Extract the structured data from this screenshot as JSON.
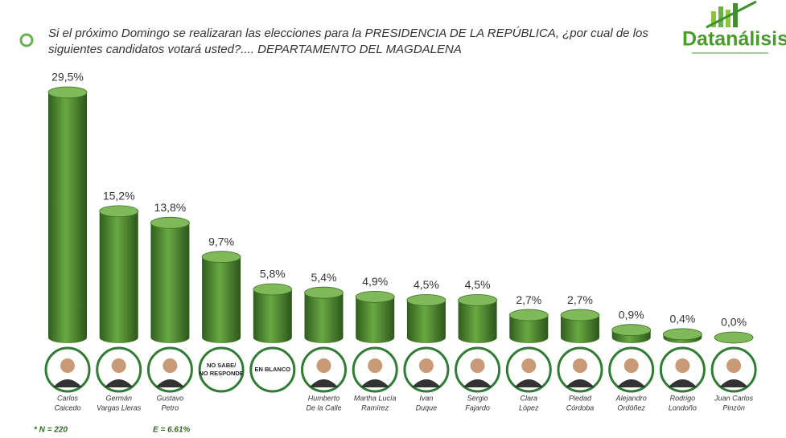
{
  "title": [
    "Si el próximo Domingo se realizaran las elecciones para la PRESIDENCIA DE LA REPÚBLICA, ¿por cual de los",
    "siguientes candidatos votará usted?.... DEPARTAMENTO DEL MAGDALENA"
  ],
  "logo": "Datanálisis",
  "footnotes": [
    "*   N = 220",
    "E = 6.61%"
  ],
  "chart_data": {
    "type": "bar",
    "categories": [
      [
        "Carlos",
        "Caicedo"
      ],
      [
        "Germán",
        "Vargas Lleras"
      ],
      [
        "Gustavo",
        "Petro"
      ],
      [
        "NO SABE/",
        "NO RESPONDE"
      ],
      [
        "EN BLANCO"
      ],
      [
        "Humberto",
        "De la Calle"
      ],
      [
        "Martha Lucía",
        "Ramírez"
      ],
      [
        "Ivan",
        "Duque"
      ],
      [
        "Sergio",
        "Fajardo"
      ],
      [
        "Clara",
        "López"
      ],
      [
        "Piedad",
        "Córdoba"
      ],
      [
        "Alejandro",
        "Ordóñez"
      ],
      [
        "Rodrigo",
        "Londoño"
      ],
      [
        "Juan Carlos",
        "Pinzón"
      ]
    ],
    "label_in_circle": [
      false,
      false,
      false,
      true,
      true,
      false,
      false,
      false,
      false,
      false,
      false,
      false,
      false,
      false
    ],
    "values": [
      29.5,
      15.2,
      13.8,
      9.7,
      5.8,
      5.4,
      4.9,
      4.5,
      4.5,
      2.7,
      2.7,
      0.9,
      0.4,
      0.0
    ],
    "value_labels": [
      "29,5%",
      "15,2%",
      "13,8%",
      "9,7%",
      "5,8%",
      "5,4%",
      "4,9%",
      "4,5%",
      "4,5%",
      "2,7%",
      "2,7%",
      "0,9%",
      "0,4%",
      "0,0%"
    ],
    "color": "#4e8a2e"
  }
}
